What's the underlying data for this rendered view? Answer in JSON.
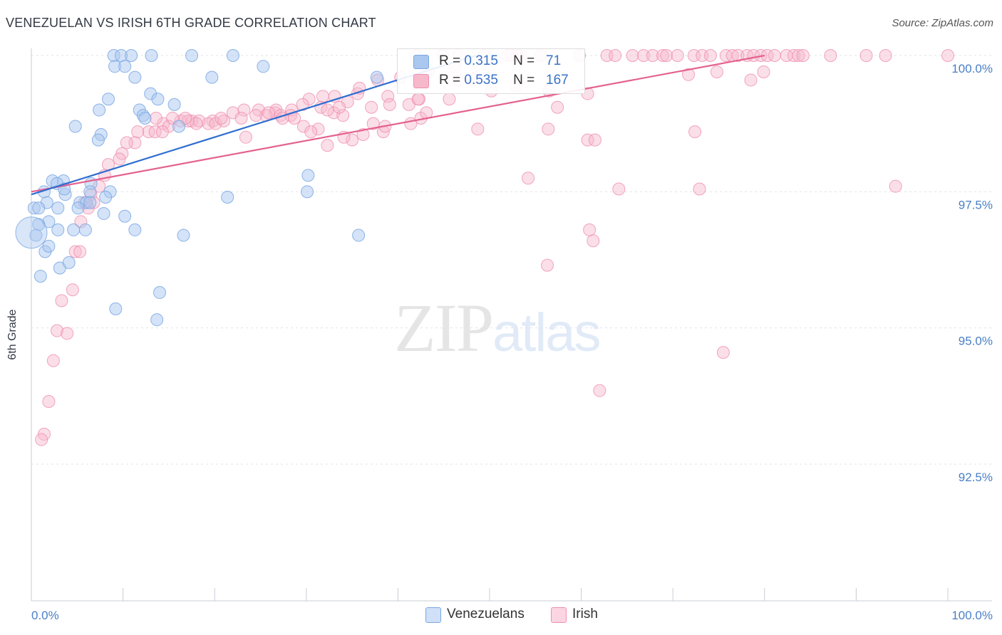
{
  "header": {
    "title": "VENEZUELAN VS IRISH 6TH GRADE CORRELATION CHART",
    "source": "Source: ZipAtlas.com"
  },
  "watermark": {
    "zip": "ZIP",
    "atlas": "atlas"
  },
  "legend_top": {
    "rows": [
      {
        "r_label": "R =",
        "r_value": "0.315",
        "n_label": "N =",
        "n_value": "71",
        "color": "#aac7ef"
      },
      {
        "r_label": "R =",
        "r_value": "0.535",
        "n_label": "N =",
        "n_value": "167",
        "color": "#f7b8cc"
      }
    ]
  },
  "legend_bottom": {
    "items": [
      {
        "label": "Venezuelans",
        "color": "#aac7ef"
      },
      {
        "label": "Irish",
        "color": "#f7b8cc"
      }
    ]
  },
  "chart_data": {
    "type": "scatter",
    "title": "VENEZUELAN VS IRISH 6TH GRADE CORRELATION CHART",
    "xlabel": "",
    "ylabel": "6th Grade",
    "xlim": [
      0,
      100
    ],
    "ylim": [
      90.0,
      100.3
    ],
    "x_ticks": [
      0,
      10,
      20,
      30,
      40,
      50,
      60,
      70,
      80,
      90,
      100
    ],
    "x_tick_labels": {
      "first": "0.0%",
      "last": "100.0%"
    },
    "y_ticks": [
      92.5,
      95.0,
      97.5,
      100.0
    ],
    "y_tick_labels": [
      "92.5%",
      "95.0%",
      "97.5%",
      "100.0%"
    ],
    "grid": true,
    "legend_position": "top-center",
    "series": [
      {
        "name": "Venezuelans",
        "color": "#7aa7e4",
        "fill": "#aac7ef",
        "trend_color": "#2f6ed0",
        "trend": {
          "x": [
            0,
            48.5
          ],
          "y": [
            97.45,
            100.0
          ]
        },
        "points": [
          [
            9,
            100
          ],
          [
            9.8,
            100
          ],
          [
            10.9,
            100
          ],
          [
            13.1,
            100
          ],
          [
            17.5,
            100
          ],
          [
            22,
            100
          ],
          [
            25.3,
            99.8
          ],
          [
            9.1,
            99.8
          ],
          [
            10.2,
            99.8
          ],
          [
            11.3,
            99.6
          ],
          [
            19.7,
            99.6
          ],
          [
            37.7,
            99.6
          ],
          [
            13,
            99.3
          ],
          [
            13.8,
            99.2
          ],
          [
            8.4,
            99.2
          ],
          [
            7.4,
            99
          ],
          [
            11.8,
            99
          ],
          [
            12.2,
            98.9
          ],
          [
            12.4,
            98.85
          ],
          [
            15.6,
            99.1
          ],
          [
            16.1,
            98.7
          ],
          [
            4.8,
            98.7
          ],
          [
            7.6,
            98.55
          ],
          [
            7.3,
            98.45
          ],
          [
            2.3,
            97.7
          ],
          [
            3.5,
            97.7
          ],
          [
            2.8,
            97.65
          ],
          [
            6.5,
            97.65
          ],
          [
            1.4,
            97.5
          ],
          [
            6.4,
            97.5
          ],
          [
            8.6,
            97.5
          ],
          [
            3.7,
            97.45
          ],
          [
            1.7,
            97.3
          ],
          [
            5.3,
            97.3
          ],
          [
            6,
            97.3
          ],
          [
            8.1,
            97.4
          ],
          [
            21.4,
            97.4
          ],
          [
            30.2,
            97.8
          ],
          [
            30.1,
            97.5
          ],
          [
            2.9,
            97.2
          ],
          [
            0.3,
            97.2
          ],
          [
            0.8,
            97.2
          ],
          [
            7.9,
            97.1
          ],
          [
            10.2,
            97.05
          ],
          [
            1.9,
            96.95
          ],
          [
            0.8,
            96.9
          ],
          [
            2.9,
            96.8
          ],
          [
            4.6,
            96.8
          ],
          [
            5.9,
            96.8
          ],
          [
            11.3,
            96.8
          ],
          [
            16.6,
            96.7
          ],
          [
            35.7,
            96.7
          ],
          [
            0.5,
            96.7
          ],
          [
            1.5,
            96.4
          ],
          [
            1.9,
            96.5
          ],
          [
            3.1,
            96.1
          ],
          [
            4.1,
            96.2
          ],
          [
            1,
            95.95
          ],
          [
            14,
            95.65
          ],
          [
            9.2,
            95.35
          ],
          [
            13.7,
            95.15
          ],
          [
            5.1,
            97.2
          ],
          [
            6.4,
            97.3
          ],
          [
            3.6,
            97.55
          ]
        ],
        "large_point": [
          0,
          96.75
        ]
      },
      {
        "name": "Irish",
        "color": "#ef8fae",
        "fill": "#f7b8cc",
        "trend_color": "#e4618f",
        "trend": {
          "x": [
            0,
            80
          ],
          "y": [
            97.5,
            100.0
          ]
        },
        "points": [
          [
            42,
            100
          ],
          [
            44.9,
            100
          ],
          [
            46.6,
            100
          ],
          [
            49.4,
            100
          ],
          [
            52,
            100
          ],
          [
            52.4,
            100
          ],
          [
            53,
            100
          ],
          [
            53.4,
            100
          ],
          [
            55.6,
            100
          ],
          [
            59.8,
            100
          ],
          [
            62.8,
            100
          ],
          [
            63.7,
            100
          ],
          [
            65.6,
            100
          ],
          [
            66.8,
            100
          ],
          [
            67.8,
            100
          ],
          [
            68.9,
            100
          ],
          [
            69.3,
            100
          ],
          [
            70.5,
            100
          ],
          [
            72.3,
            100
          ],
          [
            73.2,
            100
          ],
          [
            74.1,
            100
          ],
          [
            75.8,
            100
          ],
          [
            76.5,
            100
          ],
          [
            77.1,
            100
          ],
          [
            78.1,
            100
          ],
          [
            78.8,
            100
          ],
          [
            79.6,
            100
          ],
          [
            80.3,
            100
          ],
          [
            81.1,
            100
          ],
          [
            82.4,
            100
          ],
          [
            83.2,
            100
          ],
          [
            83.7,
            100
          ],
          [
            84.2,
            100
          ],
          [
            87.2,
            100
          ],
          [
            91.1,
            100
          ],
          [
            93.2,
            100
          ],
          [
            100,
            100
          ],
          [
            46.2,
            99.8
          ],
          [
            40.3,
            99.6
          ],
          [
            37.8,
            99.55
          ],
          [
            43.3,
            99.7
          ],
          [
            46.6,
            99.55
          ],
          [
            48.2,
            99.55
          ],
          [
            48.6,
            99.6
          ],
          [
            50.2,
            99.35
          ],
          [
            52.9,
            99.45
          ],
          [
            56.5,
            99.35
          ],
          [
            60.7,
            99.3
          ],
          [
            71.7,
            99.65
          ],
          [
            78.5,
            99.55
          ],
          [
            35.6,
            99.3
          ],
          [
            38.9,
            99.25
          ],
          [
            35.8,
            99.4
          ],
          [
            39.1,
            99.1
          ],
          [
            41.2,
            99.1
          ],
          [
            42.3,
            99.2
          ],
          [
            45.6,
            99.2
          ],
          [
            34.5,
            99.15
          ],
          [
            33.1,
            99.25
          ],
          [
            31.8,
            99.25
          ],
          [
            30.3,
            99.2
          ],
          [
            29.6,
            99.1
          ],
          [
            26.6,
            98.95
          ],
          [
            26.7,
            99
          ],
          [
            27.2,
            98.9
          ],
          [
            24.8,
            99
          ],
          [
            28.4,
            99
          ],
          [
            28.3,
            98.9
          ],
          [
            31.6,
            99.05
          ],
          [
            33,
            98.95
          ],
          [
            32.3,
            99
          ],
          [
            34,
            98.9
          ],
          [
            23.2,
            99
          ],
          [
            22,
            98.95
          ],
          [
            22.9,
            98.85
          ],
          [
            17.5,
            98.8
          ],
          [
            16.3,
            98.8
          ],
          [
            14.4,
            98.75
          ],
          [
            15,
            98.7
          ],
          [
            19.8,
            98.8
          ],
          [
            19.3,
            98.75
          ],
          [
            20.1,
            98.75
          ],
          [
            18.3,
            98.8
          ],
          [
            18,
            98.75
          ],
          [
            25.6,
            98.9
          ],
          [
            27.4,
            98.85
          ],
          [
            29.7,
            98.7
          ],
          [
            31.3,
            98.65
          ],
          [
            37.3,
            98.75
          ],
          [
            41.4,
            98.75
          ],
          [
            38.4,
            98.6
          ],
          [
            48.7,
            98.65
          ],
          [
            56.4,
            98.65
          ],
          [
            60.7,
            98.45
          ],
          [
            72.4,
            98.6
          ],
          [
            42.2,
            99.2
          ],
          [
            12.8,
            98.6
          ],
          [
            11.6,
            98.6
          ],
          [
            13.5,
            98.6
          ],
          [
            14.3,
            98.6
          ],
          [
            30.5,
            98.6
          ],
          [
            36.2,
            98.55
          ],
          [
            35,
            98.45
          ],
          [
            34.1,
            98.5
          ],
          [
            32.3,
            98.35
          ],
          [
            23.4,
            98.5
          ],
          [
            11.3,
            98.4
          ],
          [
            10.4,
            98.4
          ],
          [
            9.9,
            98.2
          ],
          [
            9.6,
            98.1
          ],
          [
            8.4,
            98
          ],
          [
            8,
            97.8
          ],
          [
            7.4,
            97.6
          ],
          [
            6.5,
            97.45
          ],
          [
            5.8,
            97.3
          ],
          [
            6.2,
            97.2
          ],
          [
            6.8,
            97.3
          ],
          [
            5.4,
            96.95
          ],
          [
            4.8,
            96.4
          ],
          [
            5.3,
            96.4
          ],
          [
            4.5,
            95.7
          ],
          [
            3.3,
            95.5
          ],
          [
            2.8,
            94.95
          ],
          [
            3.9,
            94.9
          ],
          [
            2.4,
            94.4
          ],
          [
            1.9,
            93.65
          ],
          [
            1.4,
            93.05
          ],
          [
            1.1,
            92.95
          ],
          [
            54.2,
            97.75
          ],
          [
            64.1,
            97.55
          ],
          [
            72.9,
            97.55
          ],
          [
            94.3,
            97.6
          ],
          [
            61.5,
            98.45
          ],
          [
            57.4,
            99.05
          ],
          [
            60.9,
            96.8
          ],
          [
            61.3,
            96.6
          ],
          [
            62,
            93.85
          ],
          [
            56.3,
            96.15
          ],
          [
            75.5,
            94.55
          ],
          [
            79.9,
            99.7
          ],
          [
            74.8,
            99.7
          ],
          [
            42.5,
            98.85
          ],
          [
            38.6,
            98.7
          ],
          [
            43.1,
            98.95
          ],
          [
            37.1,
            99.05
          ],
          [
            33.6,
            99.05
          ],
          [
            28.7,
            98.85
          ],
          [
            13.6,
            98.85
          ],
          [
            15.4,
            98.85
          ],
          [
            17.1,
            98.8
          ],
          [
            16.8,
            98.85
          ],
          [
            21,
            98.8
          ],
          [
            20.7,
            98.85
          ],
          [
            24.5,
            98.9
          ],
          [
            25.9,
            98.95
          ]
        ]
      }
    ]
  }
}
